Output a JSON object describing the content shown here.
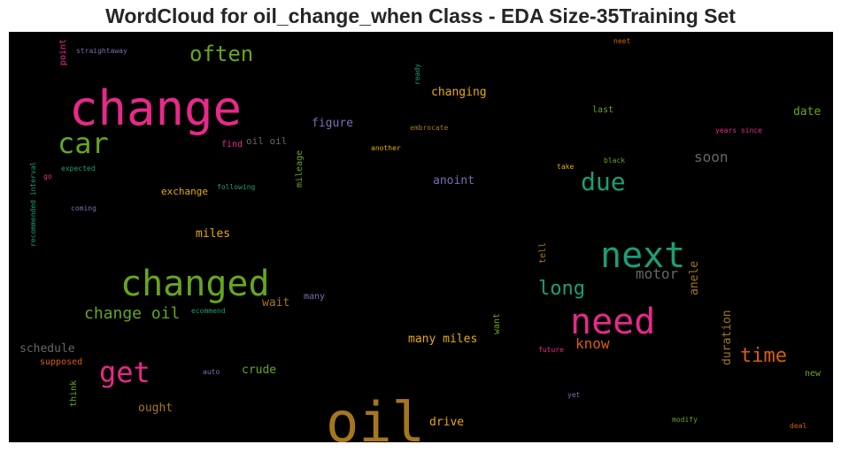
{
  "chart_data": {
    "type": "wordcloud",
    "title": "WordCloud for oil_change_when Class - EDA Size-35Training Set",
    "background": "#000000",
    "words": [
      {
        "text": "change",
        "weight": 1.0,
        "color": "#e7298a"
      },
      {
        "text": "oil",
        "weight": 1.0,
        "color": "#a6761d"
      },
      {
        "text": "changed",
        "weight": 0.73,
        "color": "#66a61e"
      },
      {
        "text": "next",
        "weight": 0.7,
        "color": "#1b9e77"
      },
      {
        "text": "need",
        "weight": 0.7,
        "color": "#e7298a"
      },
      {
        "text": "car",
        "weight": 0.55,
        "color": "#66a61e"
      },
      {
        "text": "get",
        "weight": 0.55,
        "color": "#e7298a"
      },
      {
        "text": "due",
        "weight": 0.48,
        "color": "#1b9e77"
      },
      {
        "text": "often",
        "weight": 0.38,
        "color": "#66a61e"
      },
      {
        "text": "long",
        "weight": 0.38,
        "color": "#1b9e77"
      },
      {
        "text": "time",
        "weight": 0.38,
        "color": "#d95f02"
      },
      {
        "text": "change oil",
        "weight": 0.3,
        "color": "#66a61e"
      },
      {
        "text": "know",
        "weight": 0.28,
        "color": "#d95f02"
      },
      {
        "text": "motor",
        "weight": 0.28,
        "color": "#666666"
      },
      {
        "text": "soon",
        "weight": 0.27,
        "color": "#666666"
      },
      {
        "text": "changing",
        "weight": 0.22,
        "color": "#e6ab02"
      },
      {
        "text": "figure",
        "weight": 0.22,
        "color": "#7570b3"
      },
      {
        "text": "date",
        "weight": 0.22,
        "color": "#66a61e"
      },
      {
        "text": "anoint",
        "weight": 0.22,
        "color": "#7570b3"
      },
      {
        "text": "duration",
        "weight": 0.22,
        "color": "#a6761d"
      },
      {
        "text": "schedule",
        "weight": 0.22,
        "color": "#666666"
      },
      {
        "text": "many miles",
        "weight": 0.22,
        "color": "#e6ab02"
      },
      {
        "text": "crude",
        "weight": 0.22,
        "color": "#66a61e"
      },
      {
        "text": "wait",
        "weight": 0.22,
        "color": "#a6761d"
      },
      {
        "text": "miles",
        "weight": 0.22,
        "color": "#e6ab02"
      },
      {
        "text": "drive",
        "weight": 0.22,
        "color": "#e6ab02"
      },
      {
        "text": "ought",
        "weight": 0.22,
        "color": "#a6761d"
      },
      {
        "text": "anele",
        "weight": 0.22,
        "color": "#a6761d"
      },
      {
        "text": "exchange",
        "weight": 0.19,
        "color": "#e6ab02"
      },
      {
        "text": "oil oil",
        "weight": 0.19,
        "color": "#666666"
      },
      {
        "text": "mileage",
        "weight": 0.17,
        "color": "#66a61e"
      },
      {
        "text": "last",
        "weight": 0.17,
        "color": "#66a61e"
      },
      {
        "text": "find",
        "weight": 0.17,
        "color": "#e7298a"
      },
      {
        "text": "tell",
        "weight": 0.16,
        "color": "#a6761d"
      },
      {
        "text": "many",
        "weight": 0.16,
        "color": "#7570b3"
      },
      {
        "text": "supposed",
        "weight": 0.16,
        "color": "#d95f02"
      },
      {
        "text": "new",
        "weight": 0.16,
        "color": "#66a61e"
      },
      {
        "text": "think",
        "weight": 0.16,
        "color": "#66a61e"
      },
      {
        "text": "want",
        "weight": 0.14,
        "color": "#66a61e"
      },
      {
        "text": "point",
        "weight": 0.14,
        "color": "#e7298a"
      },
      {
        "text": "straightaway",
        "weight": 0.12,
        "color": "#7570b3"
      },
      {
        "text": "neet",
        "weight": 0.12,
        "color": "#d95f02"
      },
      {
        "text": "ready",
        "weight": 0.12,
        "color": "#1b9e77"
      },
      {
        "text": "embrocate",
        "weight": 0.12,
        "color": "#a6761d"
      },
      {
        "text": "years since",
        "weight": 0.12,
        "color": "#e7298a"
      },
      {
        "text": "another",
        "weight": 0.12,
        "color": "#e6ab02"
      },
      {
        "text": "take",
        "weight": 0.12,
        "color": "#e6ab02"
      },
      {
        "text": "black",
        "weight": 0.12,
        "color": "#66a61e"
      },
      {
        "text": "expected",
        "weight": 0.12,
        "color": "#1b9e77"
      },
      {
        "text": "go",
        "weight": 0.12,
        "color": "#e7298a"
      },
      {
        "text": "following",
        "weight": 0.12,
        "color": "#1b9e77"
      },
      {
        "text": "coming",
        "weight": 0.12,
        "color": "#7570b3"
      },
      {
        "text": "recommended interval",
        "weight": 0.11,
        "color": "#1b9e77"
      },
      {
        "text": "ecommend",
        "weight": 0.11,
        "color": "#1b9e77"
      },
      {
        "text": "auto",
        "weight": 0.11,
        "color": "#7570b3"
      },
      {
        "text": "future",
        "weight": 0.11,
        "color": "#e7298a"
      },
      {
        "text": "yet",
        "weight": 0.11,
        "color": "#7570b3"
      },
      {
        "text": "modify",
        "weight": 0.11,
        "color": "#66a61e"
      },
      {
        "text": "deal",
        "weight": 0.11,
        "color": "#d95f02"
      }
    ]
  }
}
